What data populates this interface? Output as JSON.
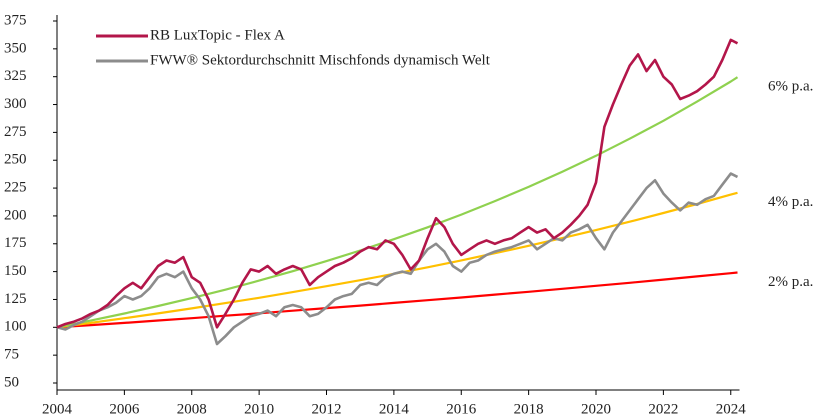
{
  "chart_data": {
    "type": "line",
    "xlim": [
      2004,
      2024.2
    ],
    "xticks": [
      2004,
      2006,
      2008,
      2010,
      2012,
      2014,
      2016,
      2018,
      2020,
      2022,
      2024
    ],
    "ylim": [
      50,
      375
    ],
    "yticks": [
      50,
      75,
      100,
      125,
      150,
      175,
      200,
      225,
      250,
      275,
      300,
      325,
      350,
      375
    ],
    "grid": false,
    "legend": "top-left",
    "series": [
      {
        "name": "RB LuxTopic - Flex A",
        "color": "#b3164a",
        "x": [
          2004,
          2004.25,
          2004.5,
          2004.75,
          2005,
          2005.25,
          2005.5,
          2005.75,
          2006,
          2006.25,
          2006.5,
          2006.75,
          2007,
          2007.25,
          2007.5,
          2007.75,
          2008,
          2008.25,
          2008.5,
          2008.75,
          2009,
          2009.25,
          2009.5,
          2009.75,
          2010,
          2010.25,
          2010.5,
          2010.75,
          2011,
          2011.25,
          2011.5,
          2011.75,
          2012,
          2012.25,
          2012.5,
          2012.75,
          2013,
          2013.25,
          2013.5,
          2013.75,
          2014,
          2014.25,
          2014.5,
          2014.75,
          2015,
          2015.25,
          2015.5,
          2015.75,
          2016,
          2016.25,
          2016.5,
          2016.75,
          2017,
          2017.25,
          2017.5,
          2017.75,
          2018,
          2018.25,
          2018.5,
          2018.75,
          2019,
          2019.25,
          2019.5,
          2019.75,
          2020,
          2020.25,
          2020.5,
          2020.75,
          2021,
          2021.25,
          2021.5,
          2021.75,
          2022,
          2022.25,
          2022.5,
          2022.75,
          2023,
          2023.25,
          2023.5,
          2023.75,
          2024,
          2024.2
        ],
        "values": [
          100,
          103,
          105,
          108,
          112,
          115,
          120,
          128,
          135,
          140,
          135,
          145,
          155,
          160,
          158,
          163,
          145,
          140,
          125,
          100,
          112,
          125,
          140,
          152,
          150,
          155,
          148,
          152,
          155,
          152,
          138,
          145,
          150,
          155,
          158,
          162,
          168,
          172,
          170,
          178,
          175,
          165,
          152,
          160,
          180,
          198,
          190,
          175,
          165,
          170,
          175,
          178,
          175,
          178,
          180,
          185,
          190,
          185,
          188,
          180,
          185,
          192,
          200,
          210,
          230,
          280,
          300,
          318,
          335,
          345,
          330,
          340,
          325,
          318,
          305,
          308,
          312,
          318,
          325,
          340,
          358,
          355
        ]
      },
      {
        "name": "FWW® Sektordurchschnitt Mischfonds dynamisch Welt",
        "color": "#8c8c8c",
        "x": [
          2004,
          2004.25,
          2004.5,
          2004.75,
          2005,
          2005.25,
          2005.5,
          2005.75,
          2006,
          2006.25,
          2006.5,
          2006.75,
          2007,
          2007.25,
          2007.5,
          2007.75,
          2008,
          2008.25,
          2008.5,
          2008.75,
          2009,
          2009.25,
          2009.5,
          2009.75,
          2010,
          2010.25,
          2010.5,
          2010.75,
          2011,
          2011.25,
          2011.5,
          2011.75,
          2012,
          2012.25,
          2012.5,
          2012.75,
          2013,
          2013.25,
          2013.5,
          2013.75,
          2014,
          2014.25,
          2014.5,
          2014.75,
          2015,
          2015.25,
          2015.5,
          2015.75,
          2016,
          2016.25,
          2016.5,
          2016.75,
          2017,
          2017.25,
          2017.5,
          2017.75,
          2018,
          2018.25,
          2018.5,
          2018.75,
          2019,
          2019.25,
          2019.5,
          2019.75,
          2020,
          2020.25,
          2020.5,
          2020.75,
          2021,
          2021.25,
          2021.5,
          2021.75,
          2022,
          2022.25,
          2022.5,
          2022.75,
          2023,
          2023.25,
          2023.5,
          2023.75,
          2024,
          2024.2
        ],
        "values": [
          100,
          98,
          102,
          105,
          110,
          115,
          118,
          122,
          128,
          125,
          128,
          135,
          145,
          148,
          145,
          150,
          135,
          125,
          110,
          85,
          92,
          100,
          105,
          110,
          112,
          115,
          110,
          118,
          120,
          118,
          110,
          112,
          118,
          125,
          128,
          130,
          138,
          140,
          138,
          145,
          148,
          150,
          148,
          160,
          170,
          175,
          168,
          155,
          150,
          158,
          160,
          165,
          168,
          170,
          172,
          175,
          178,
          170,
          175,
          180,
          178,
          185,
          188,
          192,
          180,
          170,
          185,
          195,
          205,
          215,
          225,
          232,
          220,
          212,
          205,
          212,
          210,
          215,
          218,
          228,
          238,
          235
        ]
      },
      {
        "label": "6% p.a.",
        "color": "#8fd14f",
        "x": [
          2004,
          2005,
          2006,
          2007,
          2008,
          2009,
          2010,
          2011,
          2012,
          2013,
          2014,
          2015,
          2016,
          2017,
          2018,
          2019,
          2020,
          2021,
          2022,
          2023,
          2024,
          2024.2
        ],
        "values": [
          100,
          106,
          112.4,
          119.1,
          126.2,
          133.8,
          141.9,
          150.4,
          159.4,
          169,
          179.1,
          189.8,
          201.2,
          213.3,
          226.1,
          239.7,
          254,
          269.3,
          285.4,
          302.6,
          320.7,
          324.5
        ]
      },
      {
        "label": "4% p.a.",
        "color": "#ffc000",
        "x": [
          2004,
          2005,
          2006,
          2007,
          2008,
          2009,
          2010,
          2011,
          2012,
          2013,
          2014,
          2015,
          2016,
          2017,
          2018,
          2019,
          2020,
          2021,
          2022,
          2023,
          2024,
          2024.2
        ],
        "values": [
          100,
          104,
          108.2,
          112.5,
          117,
          121.7,
          126.5,
          131.6,
          136.9,
          142.3,
          148,
          153.9,
          160.1,
          166.5,
          173.2,
          180.1,
          187.3,
          194.8,
          202.6,
          210.7,
          219.1,
          220.8
        ]
      },
      {
        "label": "2% p.a.",
        "color": "#ff0000",
        "x": [
          2004,
          2005,
          2006,
          2007,
          2008,
          2009,
          2010,
          2011,
          2012,
          2013,
          2014,
          2015,
          2016,
          2017,
          2018,
          2019,
          2020,
          2021,
          2022,
          2023,
          2024,
          2024.2
        ],
        "values": [
          100,
          102,
          104,
          106.1,
          108.2,
          110.4,
          112.6,
          114.9,
          117.2,
          119.5,
          121.9,
          124.3,
          126.8,
          129.4,
          131.9,
          134.6,
          137.3,
          140,
          142.8,
          145.7,
          148.6,
          149.2
        ]
      }
    ]
  }
}
